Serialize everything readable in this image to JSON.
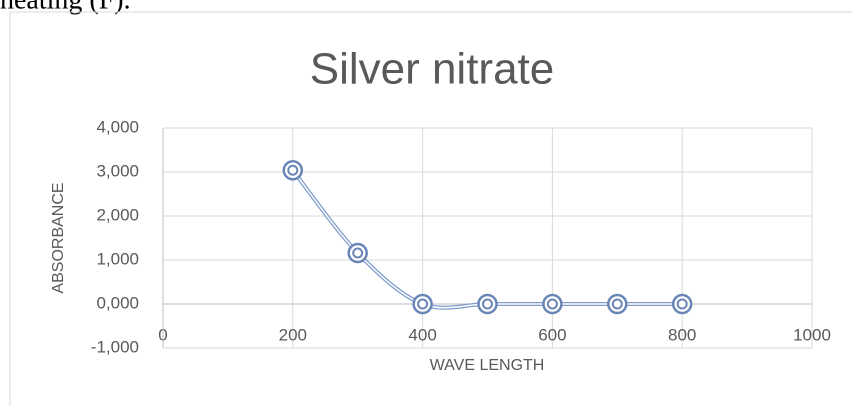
{
  "text_above": "heating (F).",
  "chart_data": {
    "type": "scatter_smooth",
    "title": "Silver nitrate",
    "x_label": "WAVE LENGTH",
    "y_label": "ABSORBANCE",
    "series": [
      {
        "name": "Silver nitrate",
        "color": "#7f9acb",
        "x": [
          200,
          300,
          400,
          500,
          600,
          700,
          800
        ],
        "values": [
          3040,
          1160,
          0,
          0,
          0,
          0,
          0
        ]
      }
    ],
    "xlim": [
      0,
      1000
    ],
    "xticks": [
      0,
      200,
      400,
      600,
      800,
      1000
    ],
    "ylim": [
      -1000,
      4000
    ],
    "yticks": [
      {
        "value": -1000,
        "label": "-1,000"
      },
      {
        "value": 0,
        "label": "0,000"
      },
      {
        "value": 1000,
        "label": "1,000"
      },
      {
        "value": 2000,
        "label": "2,000"
      },
      {
        "value": 3000,
        "label": "3,000"
      },
      {
        "value": 4000,
        "label": "4,000"
      }
    ],
    "grid": true
  }
}
